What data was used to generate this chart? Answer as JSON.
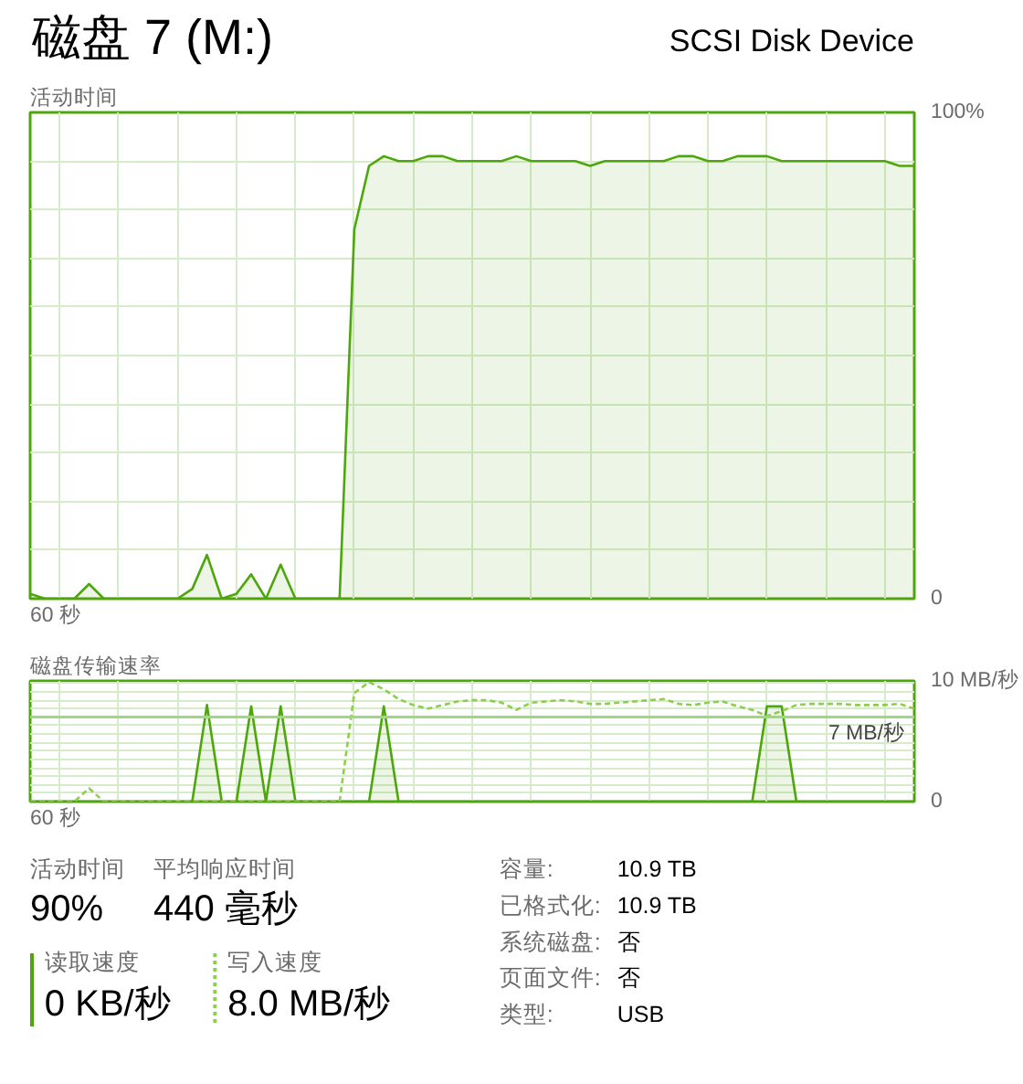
{
  "chart_data": [
    {
      "type": "area",
      "title": "磁盘 7 (M:)",
      "subtitle": "SCSI Disk Device",
      "ylabel": "活动时间",
      "color": "#4da60c",
      "categories": [
        null,
        null,
        null,
        null,
        null,
        null,
        null,
        null,
        null,
        null,
        null,
        null,
        null,
        null,
        null,
        null,
        null,
        null,
        null,
        null,
        null,
        null,
        null,
        null,
        null,
        null,
        null,
        null,
        null,
        null,
        null,
        null,
        null,
        null,
        null,
        null,
        null,
        null,
        null,
        null,
        null,
        null,
        null,
        null,
        null,
        null,
        null,
        null,
        null,
        null,
        null,
        null,
        null,
        null,
        null,
        null,
        null,
        null,
        null,
        null,
        null
      ],
      "values": [
        1,
        0,
        0,
        0,
        3,
        0,
        0,
        0,
        0,
        0,
        0,
        2,
        9,
        0,
        1,
        5,
        0,
        7,
        0,
        0,
        0,
        0,
        76,
        89,
        91,
        90,
        90,
        91,
        91,
        90,
        90,
        90,
        90,
        91,
        90,
        90,
        90,
        90,
        89,
        90,
        90,
        90,
        90,
        90,
        91,
        91,
        90,
        90,
        91,
        91,
        91,
        90,
        90,
        90,
        90,
        90,
        90,
        90,
        90,
        89,
        89
      ],
      "ylim": [
        0,
        100
      ],
      "yticks": [
        0,
        {
          "value": 10,
          "label": null
        },
        {
          "value": 20,
          "label": null
        },
        {
          "value": 30,
          "label": null
        },
        {
          "value": 40,
          "label": null
        },
        {
          "value": 50,
          "label": null
        },
        {
          "value": 60,
          "label": null
        },
        {
          "value": 70,
          "label": null
        },
        {
          "value": 80,
          "label": null
        },
        {
          "value": 90,
          "label": null
        },
        {
          "value": 100,
          "label": "100%"
        }
      ],
      "tick_labels": "y",
      "grid": true,
      "annotations": [
        "60 秒"
      ]
    },
    {
      "type": "area",
      "ylabel": "磁盘传输速率",
      "categories": [
        null,
        null,
        null,
        null,
        null,
        null,
        null,
        null,
        null,
        null,
        null,
        null,
        null,
        null,
        null,
        null,
        null,
        null,
        null,
        null,
        null,
        null,
        null,
        null,
        null,
        null,
        null,
        null,
        null,
        null,
        null,
        null,
        null,
        null,
        null,
        null,
        null,
        null,
        null,
        null,
        null,
        null,
        null,
        null,
        null,
        null,
        null,
        null,
        null,
        null,
        null,
        null,
        null,
        null,
        null,
        null,
        null,
        null,
        null,
        null,
        null
      ],
      "series": [
        {
          "name": "读取速度",
          "type": "area",
          "color": "#4da60c",
          "values": [
            0,
            0,
            0,
            0,
            0,
            0,
            0,
            0,
            0,
            0,
            0,
            0,
            8.0,
            0,
            0,
            7.9,
            0,
            7.9,
            0,
            0,
            0,
            0,
            0,
            0,
            7.9,
            0,
            0,
            0,
            0,
            0,
            0,
            0,
            0,
            0,
            0,
            0,
            0,
            0,
            0,
            0,
            0,
            0,
            0,
            0,
            0,
            0,
            0,
            0,
            0,
            0,
            7.9,
            7.9,
            0,
            0,
            0,
            0,
            0,
            0,
            0,
            0,
            0
          ]
        },
        {
          "name": "写入速度",
          "type": "line",
          "line_style": "dashed",
          "color": "#8ccf4d",
          "values": [
            0,
            0,
            0,
            0,
            1.1,
            0,
            0,
            0,
            0,
            0,
            0,
            0,
            0,
            0,
            0,
            0,
            0,
            0,
            0,
            0,
            0,
            0,
            9.0,
            9.9,
            9.3,
            8.5,
            8.0,
            7.7,
            8.0,
            8.3,
            8.4,
            8.4,
            8.2,
            7.6,
            8.2,
            8.3,
            8.4,
            8.3,
            8.1,
            8.1,
            8.2,
            8.3,
            8.4,
            8.5,
            8.1,
            8.0,
            8.2,
            8.3,
            7.9,
            7.6,
            7.1,
            7.5,
            8.0,
            8.1,
            8.1,
            8.1,
            8.0,
            8.0,
            8.0,
            8.1,
            7.7
          ]
        }
      ],
      "ylim": [
        0,
        10
      ],
      "yticks": [
        0,
        {
          "value": 0.7,
          "label": null
        },
        {
          "value": 1.4,
          "label": null
        },
        {
          "value": 2.1,
          "label": null
        },
        {
          "value": 2.8,
          "label": null
        },
        {
          "value": 3.5,
          "label": null
        },
        {
          "value": 4.2,
          "label": null
        },
        {
          "value": 4.9,
          "label": null
        },
        {
          "value": 5.6,
          "label": null
        },
        {
          "value": 6.3,
          "label": null
        },
        {
          "value": 7.0,
          "label": null
        },
        {
          "value": 7.7,
          "label": null
        },
        {
          "value": 8.4,
          "label": null
        },
        {
          "value": 9.1,
          "label": null
        },
        {
          "value": 9.8,
          "label": null
        },
        {
          "value": 10,
          "label": "10 MB/秒"
        }
      ],
      "ref_lines": [
        {
          "axis": "y",
          "value": 7,
          "label": "7 MB/秒",
          "color": "#9fd784"
        }
      ],
      "tick_labels": "y",
      "grid": true,
      "legend": "bottom",
      "annotations": [
        "60 秒",
        "0 KB/秒",
        "8.0 MB/秒"
      ]
    },
    {
      "type": "other",
      "annotations": [
        "活动时间",
        "90%",
        "平均响应时间",
        "440 毫秒",
        "容量:",
        "10.9 TB",
        "已格式化:",
        "10.9 TB",
        "系统磁盘:",
        "否",
        "页面文件:",
        "否",
        "类型:",
        "USB"
      ]
    }
  ]
}
